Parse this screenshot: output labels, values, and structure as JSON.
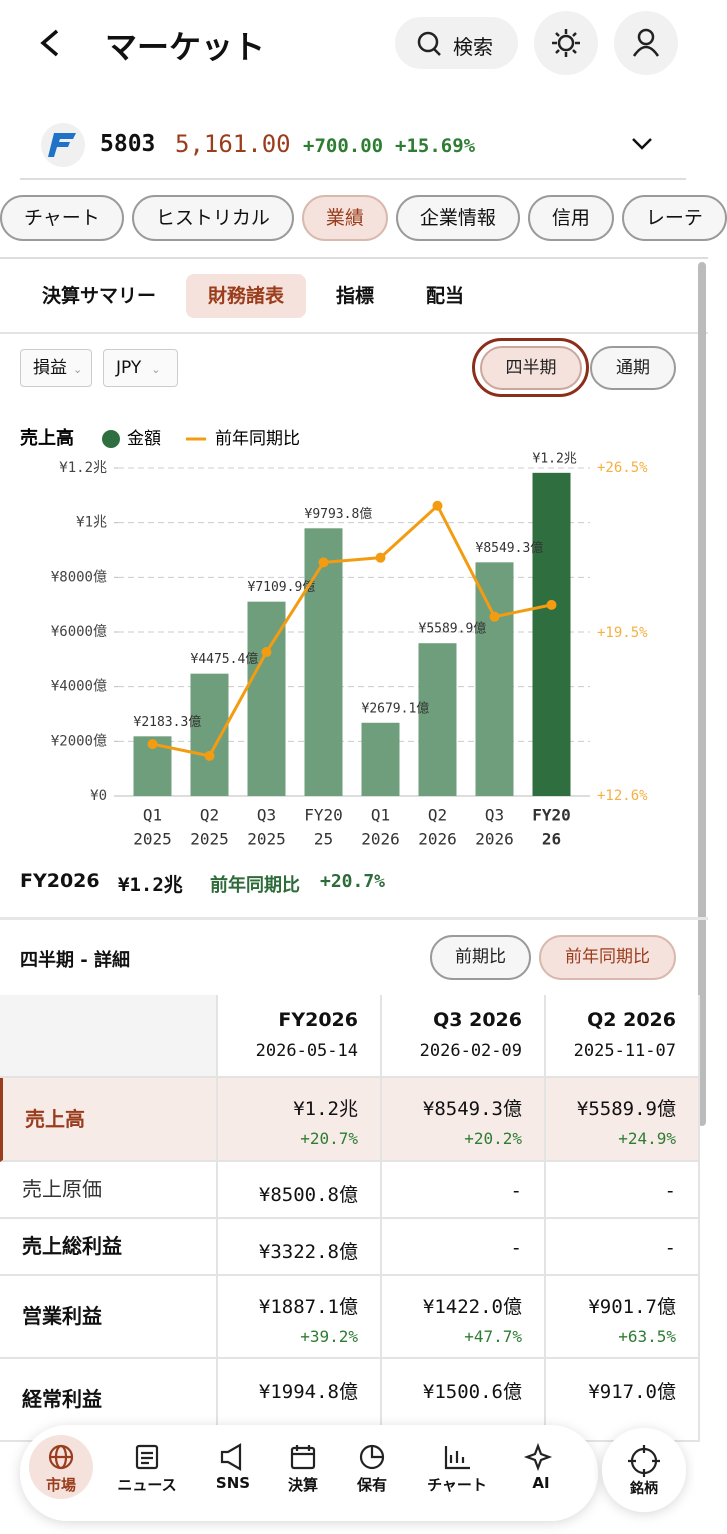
{
  "header": {
    "title": "マーケット",
    "search": "検索"
  },
  "quote": {
    "code": "5803",
    "price": "5,161.00",
    "change": "+700.00",
    "change_pct": "+15.69%"
  },
  "tabs": [
    "チャート",
    "ヒストリカル",
    "業績",
    "企業情報",
    "信用",
    "レーテ"
  ],
  "sub_tabs": [
    "決算サマリー",
    "財務諸表",
    "指標",
    "配当"
  ],
  "statement_select": "損益",
  "currency_select": "JPY",
  "period_buttons": [
    "四半期",
    "通期"
  ],
  "chart_data": {
    "type": "bar",
    "title": "売上高",
    "categories": [
      [
        "Q1",
        "2025"
      ],
      [
        "Q2",
        "2025"
      ],
      [
        "Q3",
        "2025"
      ],
      [
        "FY20",
        "25"
      ],
      [
        "Q1",
        "2026"
      ],
      [
        "Q2",
        "2026"
      ],
      [
        "Q3",
        "2026"
      ],
      [
        "FY20",
        "26"
      ]
    ],
    "series": [
      {
        "name": "金額",
        "color": "#2f6e3f",
        "colors": [
          "#6f9e7c",
          "#6f9e7c",
          "#6f9e7c",
          "#6f9e7c",
          "#6f9e7c",
          "#6f9e7c",
          "#6f9e7c",
          "#2f6e3f"
        ],
        "values": [
          2183.3,
          4475.4,
          7109.9,
          9793.8,
          2679.1,
          5589.9,
          8549.3,
          11823.6
        ],
        "value_labels": [
          "¥2183.3億",
          "¥4475.4億",
          "¥7109.9億",
          "¥9793.8億",
          "¥2679.1億",
          "¥5589.9億",
          "¥8549.3億",
          "¥1.2兆"
        ]
      },
      {
        "name": "前年同期比",
        "color": "#f39c12",
        "axis": "y2",
        "values": [
          14.8,
          14.3,
          18.7,
          22.5,
          22.7,
          24.9,
          20.2,
          20.7
        ]
      }
    ],
    "ylim": [
      0,
      12000
    ],
    "yticks": [
      {
        "value": 0,
        "label": "¥0"
      },
      {
        "value": 2000,
        "label": "¥2000億"
      },
      {
        "value": 4000,
        "label": "¥4000億"
      },
      {
        "value": 6000,
        "label": "¥6000億"
      },
      {
        "value": 8000,
        "label": "¥8000億"
      },
      {
        "value": 10000,
        "label": "¥1兆"
      },
      {
        "value": 12000,
        "label": "¥1.2兆"
      }
    ],
    "y2lim": [
      12.6,
      26.5
    ],
    "y2ticks": [
      {
        "value": 12.6,
        "label": "+12.6%"
      },
      {
        "value": 19.5,
        "label": "+19.5%"
      },
      {
        "value": 26.5,
        "label": "+26.5%"
      }
    ],
    "grid": true
  },
  "summary": {
    "period": "FY2026",
    "value": "¥1.2兆",
    "label": "前年同期比",
    "change": "+20.7%"
  },
  "detail": {
    "title": "四半期 - 詳細",
    "buttons": [
      "前期比",
      "前年同期比"
    ]
  },
  "table": {
    "columns": [
      {
        "period": "FY2026",
        "date": "2026-05-14"
      },
      {
        "period": "Q3 2026",
        "date": "2026-02-09"
      },
      {
        "period": "Q2 2026",
        "date": "2025-11-07"
      }
    ],
    "rows": [
      {
        "label": "売上高",
        "cells": [
          {
            "value": "¥1.2兆",
            "change": "+20.7%"
          },
          {
            "value": "¥8549.3億",
            "change": "+20.2%"
          },
          {
            "value": "¥5589.9億",
            "change": "+24.9%"
          }
        ]
      },
      {
        "label": "売上原価",
        "cells": [
          {
            "value": "¥8500.8億"
          },
          {
            "value": "-"
          },
          {
            "value": "-"
          }
        ]
      },
      {
        "label": "売上総利益",
        "cells": [
          {
            "value": "¥3322.8億"
          },
          {
            "value": "-"
          },
          {
            "value": "-"
          }
        ]
      },
      {
        "label": "営業利益",
        "cells": [
          {
            "value": "¥1887.1億",
            "change": "+39.2%"
          },
          {
            "value": "¥1422.0億",
            "change": "+47.7%"
          },
          {
            "value": "¥901.7億",
            "change": "+63.5%"
          }
        ]
      },
      {
        "label": "経常利益",
        "cells": [
          {
            "value": "¥1994.8億"
          },
          {
            "value": "¥1500.6億"
          },
          {
            "value": "¥917.0億"
          }
        ]
      }
    ]
  },
  "nav": {
    "items": [
      "市場",
      "ニュース",
      "SNS",
      "決算",
      "保有",
      "チャート",
      "AI"
    ],
    "stock": "銘柄"
  }
}
